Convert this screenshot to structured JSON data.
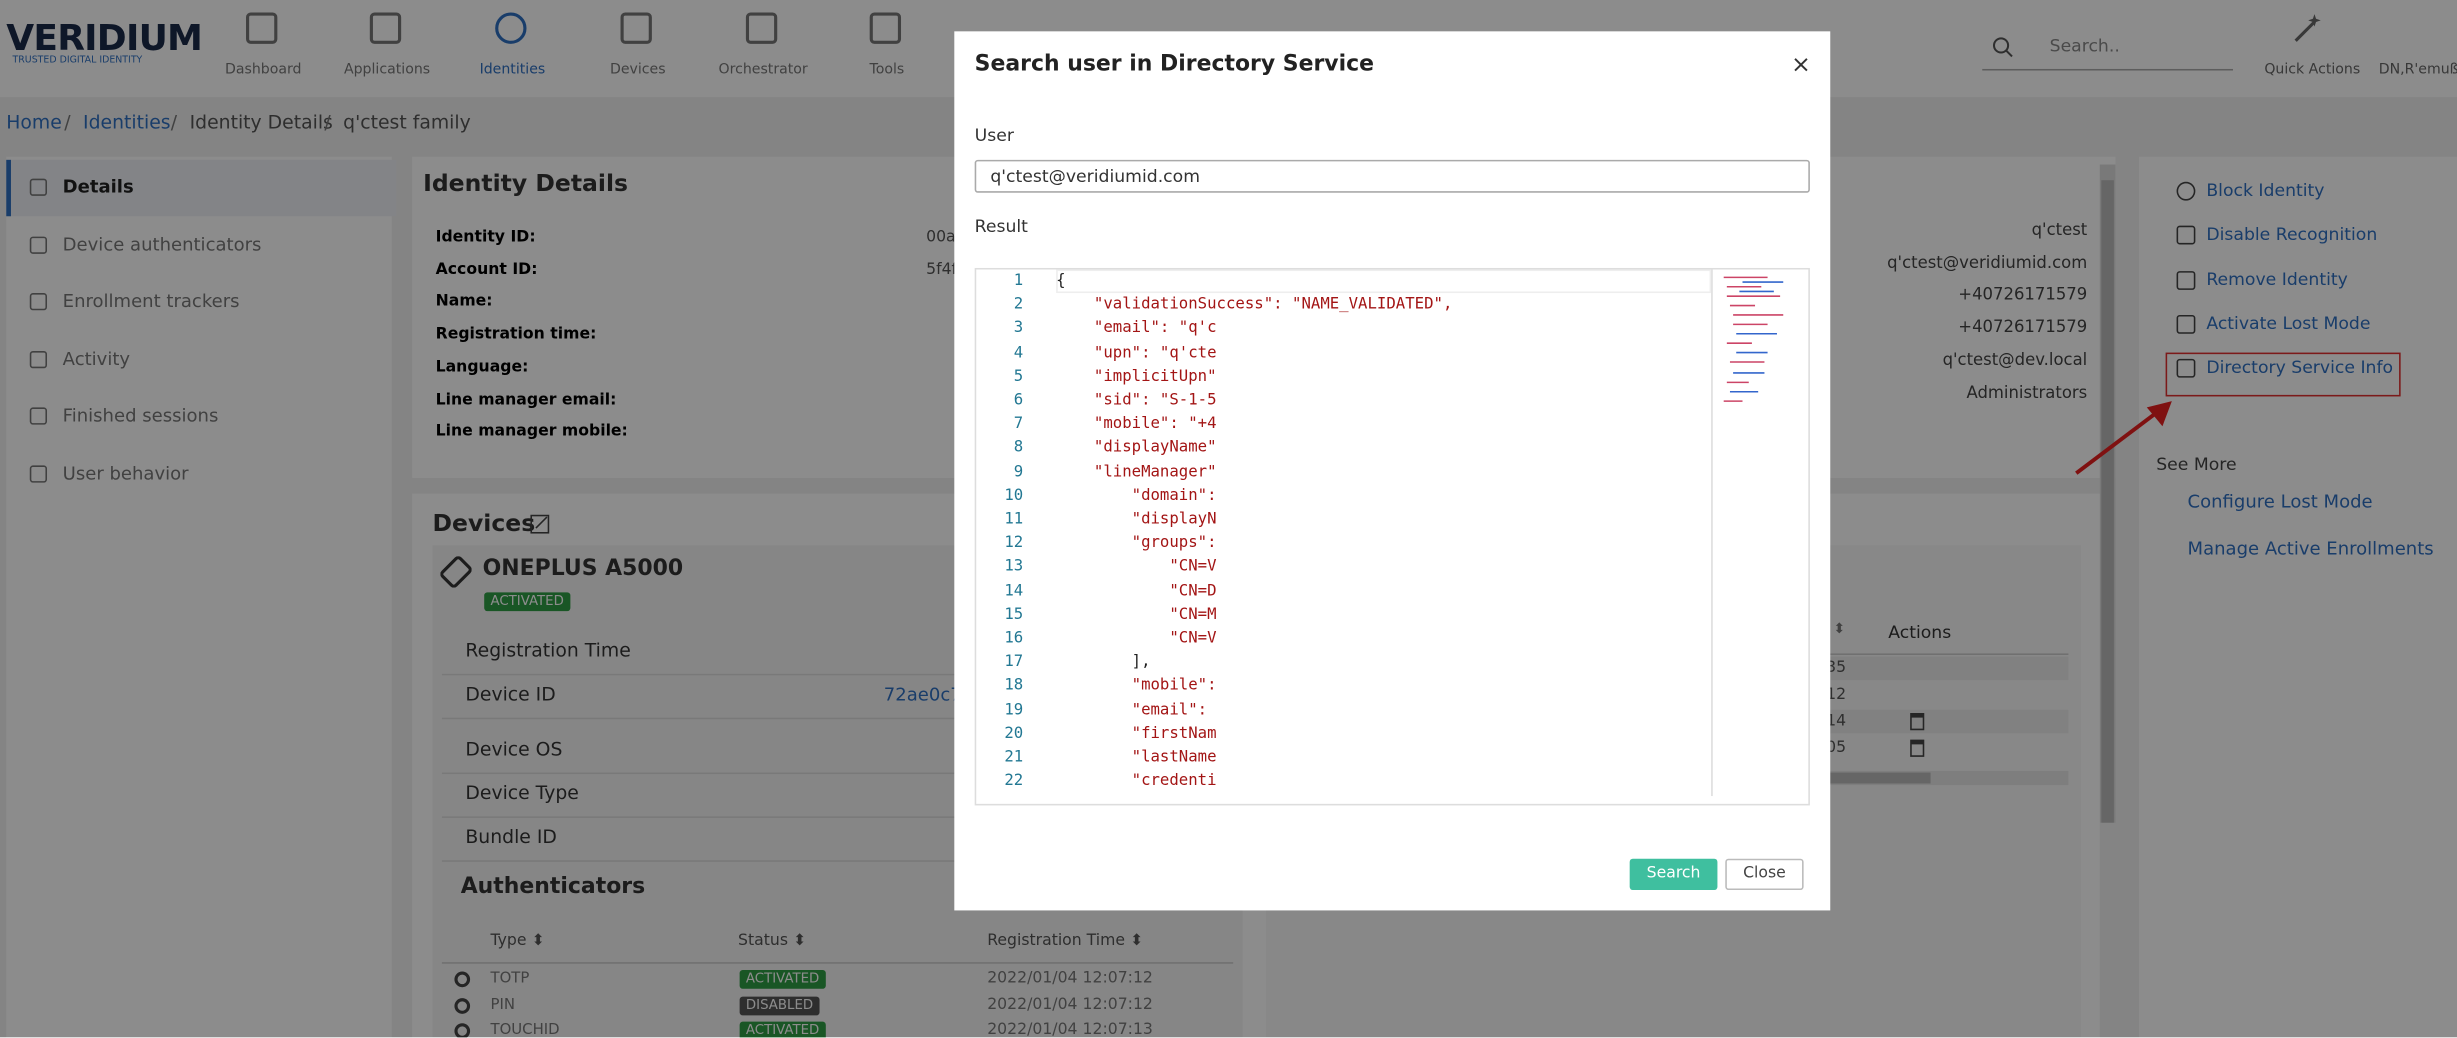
{
  "header": {
    "logo": "VERIDIUM",
    "tagline": "TRUSTED DIGITAL IDENTITY",
    "nav": [
      "Dashboard",
      "Applications",
      "Identities",
      "Devices",
      "Orchestrator",
      "Tools"
    ],
    "search_placeholder": "Search..",
    "quick_actions": "Quick Actions",
    "user": "DN,R'emuß C"
  },
  "breadcrumb": [
    "Home",
    "Identities",
    "Identity Details",
    "q'ctest family"
  ],
  "sidebar": [
    "Details",
    "Device authenticators",
    "Enrollment trackers",
    "Activity",
    "Finished sessions",
    "User behavior"
  ],
  "identity": {
    "title": "Identity Details",
    "labels": [
      "Identity ID:",
      "Account ID:",
      "Name:",
      "Registration time:",
      "Language:",
      "Line manager email:",
      "Line manager mobile:"
    ],
    "left_values": [
      "00a",
      "5f4f"
    ],
    "right_values": [
      "q'ctest",
      "q'ctest@veridiumid.com",
      "+40726171579",
      "+40726171579",
      "q'ctest@dev.local",
      "Administrators"
    ]
  },
  "devices": {
    "title": "Devices",
    "device_name": "ONEPLUS A5000",
    "device_status": "ACTIVATED",
    "rows": [
      "Registration Time",
      "Device ID",
      "Device OS",
      "Device Type",
      "Bundle ID"
    ],
    "device_id": "72ae0c7a",
    "authenticators_title": "Authenticators",
    "auth_headers": [
      "Type ⬍",
      "Status ⬍",
      "Registration Time ⬍"
    ],
    "auth_rows": [
      [
        "TOTP",
        "ACTIVATED",
        "2022/01/04 12:07:12"
      ],
      [
        "PIN",
        "DISABLED",
        "2022/01/04 12:07:12"
      ],
      [
        "TOUCHID",
        "ACTIVATED",
        "2022/01/04 12:07:13"
      ]
    ]
  },
  "enrollments": {
    "actions_header": "Actions",
    "sort_header": "⬍",
    "times": [
      ":35",
      ":12",
      ":14",
      ":05"
    ]
  },
  "actions": {
    "items": [
      "Block Identity",
      "Disable Recognition",
      "Remove Identity",
      "Activate Lost Mode",
      "Directory Service Info"
    ],
    "see_more": "See More",
    "more_links": [
      "Configure Lost Mode",
      "Manage Active Enrollments"
    ]
  },
  "modal": {
    "title": "Search user in Directory Service",
    "close_icon": "×",
    "user_label": "User",
    "user_value": "q'ctest@veridiumid.com",
    "result_label": "Result",
    "search_button": "Search",
    "close_button": "Close",
    "code": [
      {
        "n": 1,
        "text": "{"
      },
      {
        "n": 2,
        "text": "    \"validationSuccess\": \"NAME_VALIDATED\","
      },
      {
        "n": 3,
        "text": "    \"email\": \"q'c"
      },
      {
        "n": 4,
        "text": "    \"upn\": \"q'cte"
      },
      {
        "n": 5,
        "text": "    \"implicitUpn\""
      },
      {
        "n": 6,
        "text": "    \"sid\": \"S-1-5"
      },
      {
        "n": 7,
        "text": "    \"mobile\": \"+4"
      },
      {
        "n": 8,
        "text": "    \"displayName\""
      },
      {
        "n": 9,
        "text": "    \"lineManager\""
      },
      {
        "n": 10,
        "text": "        \"domain\":"
      },
      {
        "n": 11,
        "text": "        \"displayN"
      },
      {
        "n": 12,
        "text": "        \"groups\":"
      },
      {
        "n": 13,
        "text": "            \"CN=V"
      },
      {
        "n": 14,
        "text": "            \"CN=D"
      },
      {
        "n": 15,
        "text": "            \"CN=M"
      },
      {
        "n": 16,
        "text": "            \"CN=V"
      },
      {
        "n": 17,
        "text": "        ],"
      },
      {
        "n": 18,
        "text": "        \"mobile\":"
      },
      {
        "n": 19,
        "text": "        \"email\":"
      },
      {
        "n": 20,
        "text": "        \"firstNam"
      },
      {
        "n": 21,
        "text": "        \"lastName"
      },
      {
        "n": 22,
        "text": "        \"credenti"
      }
    ]
  }
}
